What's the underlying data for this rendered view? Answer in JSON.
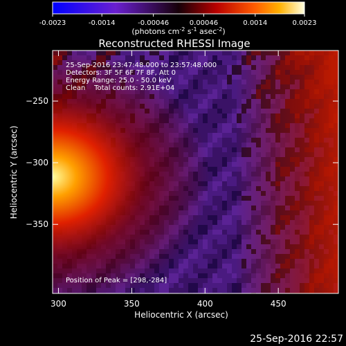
{
  "chart_data": {
    "type": "heatmap",
    "title": "Reconstructed RHESSI Image",
    "xlabel": "Heliocentric X (arcsec)",
    "ylabel": "Heliocentric Y (arcsec)",
    "x_ticks": [
      300,
      350,
      400,
      450
    ],
    "y_ticks": [
      -250,
      -300,
      -350
    ],
    "xlim": [
      296,
      491
    ],
    "ylim": [
      -406,
      -209
    ],
    "colorbar": {
      "ticks": [
        "-0.0023",
        "-0.0014",
        "-0.00046",
        "0.00046",
        "0.0014",
        "0.0023"
      ],
      "range": [
        -0.0023,
        0.0023
      ],
      "label_prefix": "(photons cm",
      "label_sup1": "-2",
      "label_mid": " s",
      "label_sup2": "-1",
      "label_mid2": " asec",
      "label_sup3": "-2",
      "label_suffix": ")"
    },
    "annotations": [
      "25-Sep-2016 23:47:48.000 to 23:57:48.000",
      "Detectors: 3F 5F 6F 7F 8F, Att 0",
      "Energy Range: 25.0 - 50.0 keV",
      "Clean    Total counts: 2.91E+04"
    ],
    "peak_label": "Position of Peak = [298,-284]",
    "peak": [
      298,
      -284
    ]
  },
  "footer_date": "25-Sep-2016 22:57"
}
